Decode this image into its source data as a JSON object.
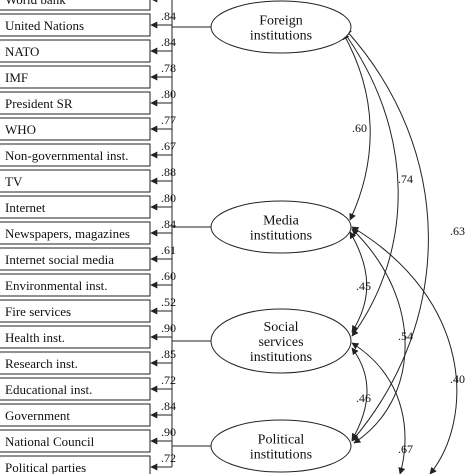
{
  "indicators": [
    {
      "label": "World bank",
      "loading": null,
      "factor": "foreign"
    },
    {
      "label": "United Nations",
      "loading": ".84",
      "factor": "foreign"
    },
    {
      "label": "NATO",
      "loading": ".84",
      "factor": "foreign"
    },
    {
      "label": "IMF",
      "loading": ".78",
      "factor": "foreign"
    },
    {
      "label": "President SR",
      "loading": ".80",
      "factor": "foreign"
    },
    {
      "label": "WHO",
      "loading": ".77",
      "factor": "foreign"
    },
    {
      "label": "Non-governmental inst.",
      "loading": ".67",
      "factor": "foreign"
    },
    {
      "label": "TV",
      "loading": ".88",
      "factor": "media"
    },
    {
      "label": "Internet",
      "loading": ".80",
      "factor": "media"
    },
    {
      "label": "Newspapers, magazines",
      "loading": ".84",
      "factor": "media"
    },
    {
      "label": "Internet social media",
      "loading": ".61",
      "factor": "media"
    },
    {
      "label": "Environmental inst.",
      "loading": ".60",
      "factor": "social"
    },
    {
      "label": "Fire services",
      "loading": ".52",
      "factor": "social"
    },
    {
      "label": "Health inst.",
      "loading": ".90",
      "factor": "social"
    },
    {
      "label": "Research inst.",
      "loading": ".85",
      "factor": "social"
    },
    {
      "label": "Educational inst.",
      "loading": ".72",
      "factor": "social"
    },
    {
      "label": "Government",
      "loading": ".84",
      "factor": "political"
    },
    {
      "label": "National Council",
      "loading": ".90",
      "factor": "political"
    },
    {
      "label": "Political parties",
      "loading": ".72",
      "factor": "political"
    }
  ],
  "factors": [
    {
      "id": "foreign",
      "lines": [
        "Foreign",
        "institutions"
      ]
    },
    {
      "id": "media",
      "lines": [
        "Media",
        "institutions"
      ]
    },
    {
      "id": "social",
      "lines": [
        "Social",
        "services",
        "institutions"
      ]
    },
    {
      "id": "political",
      "lines": [
        "Political",
        "institutions"
      ]
    }
  ],
  "correlations": [
    {
      "from": "foreign",
      "to": "media",
      "value": ".60"
    },
    {
      "from": "foreign",
      "to": "social",
      "value": ".74"
    },
    {
      "from": "foreign",
      "to": "political",
      "value": ".63"
    },
    {
      "from": "media",
      "to": "social",
      "value": ".45"
    },
    {
      "from": "media",
      "to": "political",
      "value": ".54"
    },
    {
      "from": "media",
      "to": "political-far",
      "value": ".40"
    },
    {
      "from": "social",
      "to": "political",
      "value": ".46"
    },
    {
      "from": "social",
      "to": "political-far",
      "value": ".67"
    }
  ]
}
